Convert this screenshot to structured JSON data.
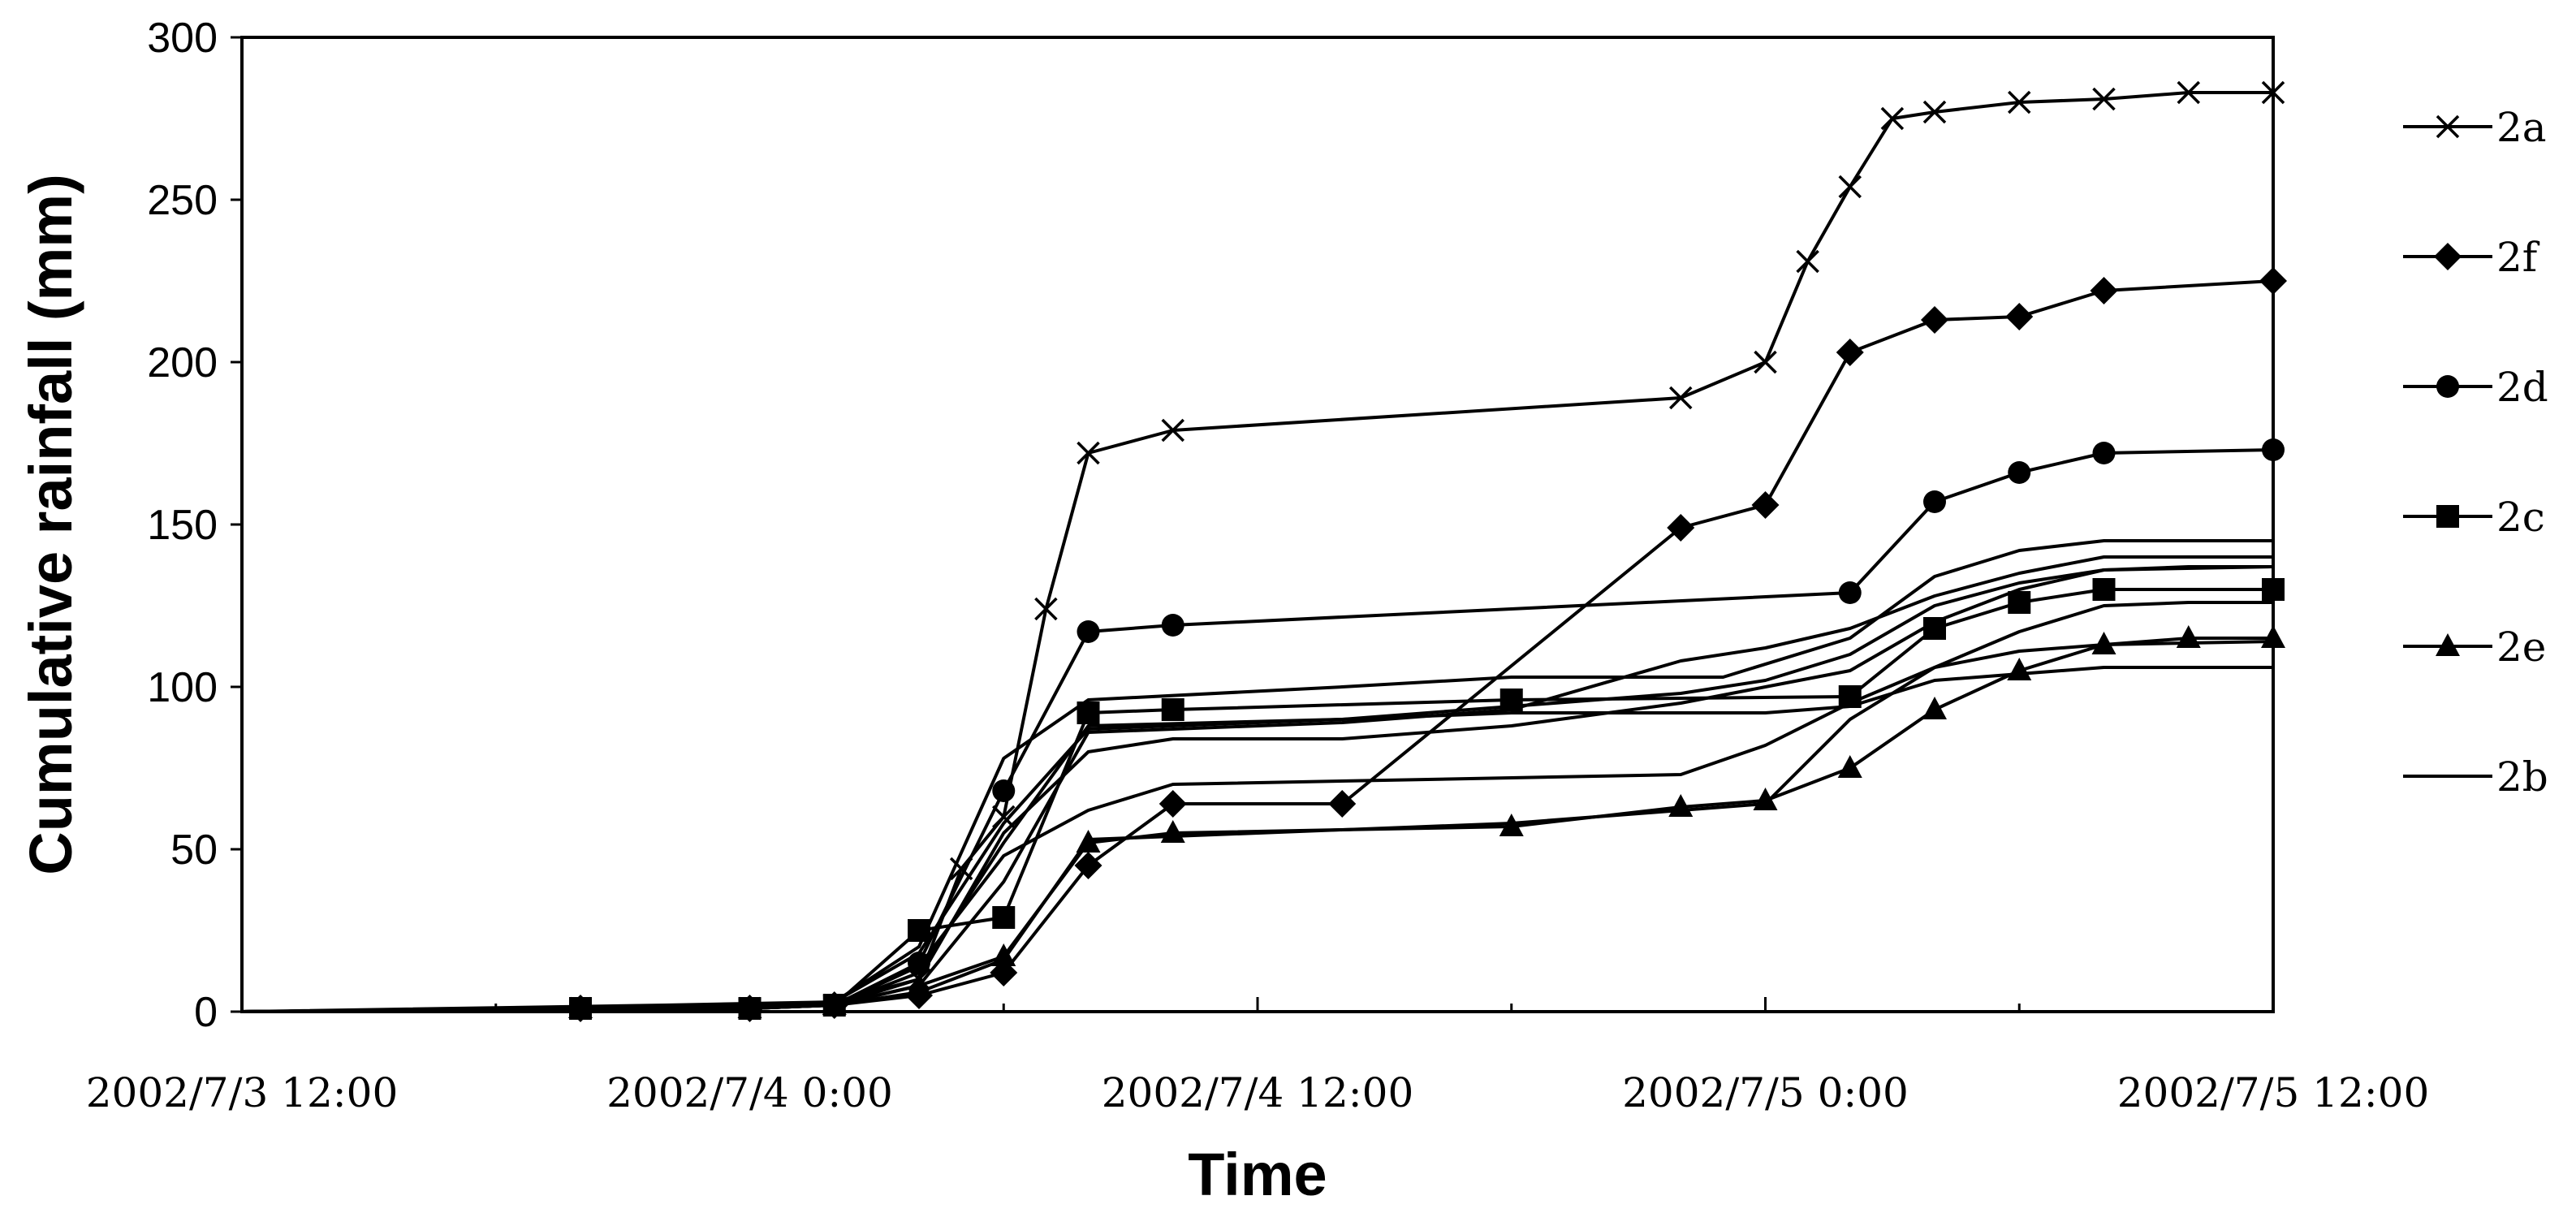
{
  "chart_data": {
    "type": "line",
    "title": "",
    "xlabel": "Time",
    "ylabel": "Cumulative rainfall (mm)",
    "x_unit": "hours",
    "xlim": [
      0,
      48
    ],
    "ylim": [
      0,
      300
    ],
    "y_ticks": [
      0,
      50,
      100,
      150,
      200,
      250,
      300
    ],
    "x_ticks": [
      "2002/7/3 12:00",
      "2002/7/4 0:00",
      "2002/7/4 12:00",
      "2002/7/5 0:00",
      "2002/7/5 12:00"
    ],
    "grid": false,
    "legend_position": "right",
    "series": [
      {
        "name": "2a",
        "marker": "x",
        "points": [
          [
            0,
            0
          ],
          [
            8,
            1
          ],
          [
            12,
            1
          ],
          [
            14,
            2
          ],
          [
            16,
            10
          ],
          [
            17,
            44
          ],
          [
            18,
            60
          ],
          [
            19,
            124
          ],
          [
            20,
            172
          ],
          [
            22,
            179
          ],
          [
            34,
            189
          ],
          [
            36,
            200
          ],
          [
            37,
            231
          ],
          [
            38,
            254
          ],
          [
            39,
            275
          ],
          [
            40,
            277
          ],
          [
            42,
            280
          ],
          [
            44,
            281
          ],
          [
            46,
            283
          ],
          [
            48,
            283
          ]
        ]
      },
      {
        "name": "2f",
        "marker": "diamond",
        "points": [
          [
            0,
            0
          ],
          [
            8,
            1
          ],
          [
            12,
            1
          ],
          [
            14,
            2
          ],
          [
            16,
            5
          ],
          [
            18,
            12
          ],
          [
            20,
            45
          ],
          [
            22,
            64
          ],
          [
            26,
            64
          ],
          [
            34,
            149
          ],
          [
            36,
            156
          ],
          [
            38,
            203
          ],
          [
            40,
            213
          ],
          [
            42,
            214
          ],
          [
            44,
            222
          ],
          [
            48,
            225
          ]
        ]
      },
      {
        "name": "2d",
        "marker": "circle",
        "points": [
          [
            0,
            0
          ],
          [
            8,
            1
          ],
          [
            12,
            1
          ],
          [
            14,
            2
          ],
          [
            16,
            15
          ],
          [
            18,
            68
          ],
          [
            20,
            117
          ],
          [
            22,
            119
          ],
          [
            38,
            129
          ],
          [
            40,
            157
          ],
          [
            42,
            166
          ],
          [
            44,
            172
          ],
          [
            48,
            173
          ]
        ]
      },
      {
        "name": "2c",
        "marker": "square",
        "points": [
          [
            0,
            0
          ],
          [
            8,
            1
          ],
          [
            12,
            1
          ],
          [
            14,
            2
          ],
          [
            16,
            25
          ],
          [
            18,
            29
          ],
          [
            20,
            92
          ],
          [
            22,
            93
          ],
          [
            30,
            96
          ],
          [
            38,
            97
          ],
          [
            40,
            118
          ],
          [
            42,
            126
          ],
          [
            44,
            130
          ],
          [
            48,
            130
          ]
        ]
      },
      {
        "name": "2e",
        "marker": "triangle",
        "points": [
          [
            0,
            0
          ],
          [
            8,
            1
          ],
          [
            12,
            1
          ],
          [
            14,
            2
          ],
          [
            16,
            8
          ],
          [
            18,
            17
          ],
          [
            20,
            52
          ],
          [
            22,
            55
          ],
          [
            30,
            57
          ],
          [
            34,
            63
          ],
          [
            36,
            65
          ],
          [
            38,
            75
          ],
          [
            40,
            93
          ],
          [
            42,
            105
          ],
          [
            44,
            113
          ],
          [
            46,
            115
          ],
          [
            48,
            115
          ]
        ]
      },
      {
        "name": "2b",
        "marker": "none",
        "points": [
          [
            0,
            0
          ],
          [
            8,
            1
          ],
          [
            12,
            2
          ],
          [
            14,
            3
          ],
          [
            16,
            10
          ],
          [
            18,
            55
          ],
          [
            20,
            80
          ],
          [
            22,
            84
          ],
          [
            26,
            84
          ],
          [
            30,
            88
          ],
          [
            34,
            95
          ],
          [
            36,
            100
          ],
          [
            38,
            105
          ],
          [
            40,
            120
          ],
          [
            42,
            130
          ],
          [
            44,
            136
          ],
          [
            46,
            137
          ],
          [
            48,
            137
          ]
        ]
      },
      {
        "name": "",
        "marker": "none",
        "points": [
          [
            0,
            0
          ],
          [
            10,
            2
          ],
          [
            14,
            3
          ],
          [
            16,
            20
          ],
          [
            18,
            78
          ],
          [
            20,
            96
          ],
          [
            26,
            100
          ],
          [
            30,
            103
          ],
          [
            35,
            103
          ],
          [
            38,
            115
          ],
          [
            40,
            134
          ],
          [
            42,
            142
          ],
          [
            44,
            145
          ],
          [
            48,
            145
          ]
        ]
      },
      {
        "name": "",
        "marker": "none",
        "points": [
          [
            0,
            0
          ],
          [
            10,
            1
          ],
          [
            14,
            3
          ],
          [
            16,
            18
          ],
          [
            18,
            58
          ],
          [
            20,
            87
          ],
          [
            26,
            90
          ],
          [
            34,
            98
          ],
          [
            36,
            102
          ],
          [
            38,
            110
          ],
          [
            40,
            125
          ],
          [
            42,
            132
          ],
          [
            44,
            136
          ],
          [
            48,
            137
          ]
        ]
      },
      {
        "name": "",
        "marker": "none",
        "points": [
          [
            0,
            0
          ],
          [
            10,
            1
          ],
          [
            14,
            2
          ],
          [
            16,
            14
          ],
          [
            18,
            48
          ],
          [
            20,
            62
          ],
          [
            22,
            70
          ],
          [
            30,
            72
          ],
          [
            34,
            73
          ],
          [
            36,
            82
          ],
          [
            38,
            95
          ],
          [
            40,
            106
          ],
          [
            42,
            117
          ],
          [
            44,
            125
          ],
          [
            46,
            126
          ],
          [
            48,
            126
          ]
        ]
      },
      {
        "name": "",
        "marker": "none",
        "points": [
          [
            0,
            0
          ],
          [
            10,
            1
          ],
          [
            14,
            2
          ],
          [
            16,
            8
          ],
          [
            18,
            40
          ],
          [
            20,
            86
          ],
          [
            26,
            89
          ],
          [
            30,
            93
          ],
          [
            34,
            108
          ],
          [
            36,
            112
          ],
          [
            38,
            118
          ],
          [
            40,
            128
          ],
          [
            42,
            135
          ],
          [
            44,
            140
          ],
          [
            48,
            140
          ]
        ]
      },
      {
        "name": "",
        "marker": "none",
        "points": [
          [
            0,
            0
          ],
          [
            10,
            1
          ],
          [
            14,
            2
          ],
          [
            16,
            12
          ],
          [
            18,
            52
          ],
          [
            20,
            88
          ],
          [
            26,
            90
          ],
          [
            30,
            92
          ],
          [
            36,
            92
          ],
          [
            38,
            94
          ],
          [
            40,
            102
          ],
          [
            42,
            104
          ],
          [
            44,
            106
          ],
          [
            48,
            106
          ]
        ]
      },
      {
        "name": "",
        "marker": "none",
        "points": [
          [
            0,
            0
          ],
          [
            10,
            1
          ],
          [
            14,
            2
          ],
          [
            16,
            6
          ],
          [
            18,
            16
          ],
          [
            20,
            53
          ],
          [
            22,
            54
          ],
          [
            30,
            58
          ],
          [
            34,
            62
          ],
          [
            36,
            64
          ],
          [
            38,
            90
          ],
          [
            40,
            106
          ],
          [
            42,
            111
          ],
          [
            44,
            113
          ],
          [
            48,
            114
          ]
        ]
      }
    ]
  }
}
